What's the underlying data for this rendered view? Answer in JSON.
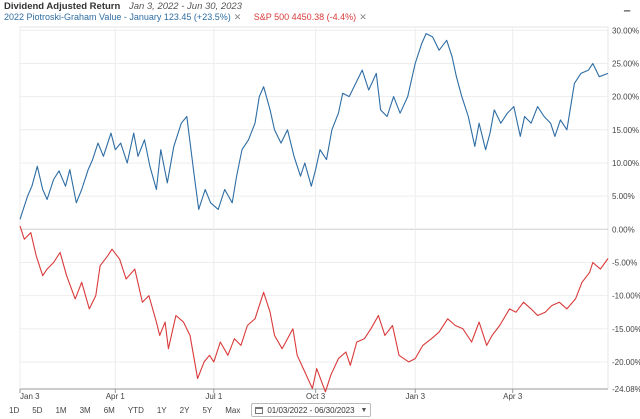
{
  "header": {
    "title": "Dividend Adjusted Return",
    "date_range": "Jan 3, 2022 - Jun 30, 2023"
  },
  "chart_data": {
    "type": "line",
    "ylim": [
      -24.08,
      30.5
    ],
    "y_ticks": [
      "30.00%",
      "25.00%",
      "20.00%",
      "15.00%",
      "10.00%",
      "5.00%",
      "0.00%",
      "-5.00%",
      "-10.00%",
      "-15.00%",
      "-20.00%",
      "-24.08%"
    ],
    "y_tick_values": [
      30,
      25,
      20,
      15,
      10,
      5,
      0,
      -5,
      -10,
      -15,
      -20,
      -24.08
    ],
    "x_ticks": [
      {
        "label": "Jan 3",
        "date": "2022-01-03"
      },
      {
        "label": "Apr 1",
        "date": "2022-04-01"
      },
      {
        "label": "Jul 1",
        "date": "2022-07-01"
      },
      {
        "label": "Oct 3",
        "date": "2022-10-03"
      },
      {
        "label": "Jan 3",
        "date": "2023-01-03"
      },
      {
        "label": "Apr 3",
        "date": "2023-04-03"
      }
    ],
    "x_range": [
      "2022-01-03",
      "2023-06-30"
    ],
    "series": [
      {
        "name": "2022 Piotroski-Graham Value - January",
        "legend": "2022 Piotroski-Graham Value - January 123.45 (+23.5%)",
        "color": "#2e6da4",
        "points": [
          [
            "2022-01-03",
            1.5
          ],
          [
            "2022-01-10",
            5.0
          ],
          [
            "2022-01-14",
            6.5
          ],
          [
            "2022-01-19",
            9.5
          ],
          [
            "2022-01-24",
            6.0
          ],
          [
            "2022-01-28",
            4.5
          ],
          [
            "2022-02-03",
            7.5
          ],
          [
            "2022-02-08",
            8.8
          ],
          [
            "2022-02-14",
            6.5
          ],
          [
            "2022-02-18",
            9.0
          ],
          [
            "2022-02-24",
            4.0
          ],
          [
            "2022-03-01",
            6.0
          ],
          [
            "2022-03-07",
            9.0
          ],
          [
            "2022-03-11",
            10.5
          ],
          [
            "2022-03-16",
            13.0
          ],
          [
            "2022-03-21",
            11.0
          ],
          [
            "2022-03-28",
            14.5
          ],
          [
            "2022-04-01",
            12.0
          ],
          [
            "2022-04-06",
            13.0
          ],
          [
            "2022-04-12",
            10.0
          ],
          [
            "2022-04-18",
            14.5
          ],
          [
            "2022-04-22",
            11.0
          ],
          [
            "2022-04-28",
            13.5
          ],
          [
            "2022-05-03",
            9.5
          ],
          [
            "2022-05-09",
            6.0
          ],
          [
            "2022-05-13",
            12.0
          ],
          [
            "2022-05-19",
            7.0
          ],
          [
            "2022-05-25",
            12.5
          ],
          [
            "2022-06-01",
            16.0
          ],
          [
            "2022-06-06",
            17.0
          ],
          [
            "2022-06-13",
            8.0
          ],
          [
            "2022-06-17",
            3.0
          ],
          [
            "2022-06-23",
            6.0
          ],
          [
            "2022-06-28",
            4.0
          ],
          [
            "2022-07-05",
            3.0
          ],
          [
            "2022-07-11",
            6.0
          ],
          [
            "2022-07-18",
            4.0
          ],
          [
            "2022-07-22",
            8.0
          ],
          [
            "2022-07-27",
            12.0
          ],
          [
            "2022-08-02",
            13.5
          ],
          [
            "2022-08-08",
            16.0
          ],
          [
            "2022-08-12",
            20.0
          ],
          [
            "2022-08-16",
            21.5
          ],
          [
            "2022-08-22",
            18.0
          ],
          [
            "2022-08-26",
            15.0
          ],
          [
            "2022-09-01",
            13.0
          ],
          [
            "2022-09-07",
            15.0
          ],
          [
            "2022-09-13",
            11.0
          ],
          [
            "2022-09-19",
            8.0
          ],
          [
            "2022-09-23",
            10.0
          ],
          [
            "2022-09-29",
            6.5
          ],
          [
            "2022-10-03",
            9.0
          ],
          [
            "2022-10-07",
            12.0
          ],
          [
            "2022-10-13",
            10.5
          ],
          [
            "2022-10-18",
            15.0
          ],
          [
            "2022-10-24",
            17.5
          ],
          [
            "2022-10-28",
            20.5
          ],
          [
            "2022-11-03",
            20.0
          ],
          [
            "2022-11-09",
            22.0
          ],
          [
            "2022-11-15",
            24.0
          ],
          [
            "2022-11-21",
            21.0
          ],
          [
            "2022-11-28",
            23.5
          ],
          [
            "2022-12-02",
            18.0
          ],
          [
            "2022-12-08",
            17.0
          ],
          [
            "2022-12-14",
            20.0
          ],
          [
            "2022-12-20",
            17.5
          ],
          [
            "2022-12-27",
            20.0
          ],
          [
            "2023-01-03",
            25.0
          ],
          [
            "2023-01-09",
            28.0
          ],
          [
            "2023-01-13",
            29.5
          ],
          [
            "2023-01-19",
            29.0
          ],
          [
            "2023-01-25",
            27.0
          ],
          [
            "2023-02-01",
            28.5
          ],
          [
            "2023-02-06",
            26.0
          ],
          [
            "2023-02-10",
            23.0
          ],
          [
            "2023-02-15",
            20.0
          ],
          [
            "2023-02-21",
            17.0
          ],
          [
            "2023-02-27",
            12.5
          ],
          [
            "2023-03-03",
            16.0
          ],
          [
            "2023-03-09",
            12.0
          ],
          [
            "2023-03-13",
            14.5
          ],
          [
            "2023-03-17",
            18.0
          ],
          [
            "2023-03-23",
            16.0
          ],
          [
            "2023-03-29",
            17.5
          ],
          [
            "2023-04-04",
            18.5
          ],
          [
            "2023-04-10",
            14.0
          ],
          [
            "2023-04-14",
            17.0
          ],
          [
            "2023-04-20",
            16.0
          ],
          [
            "2023-04-26",
            18.5
          ],
          [
            "2023-05-02",
            17.0
          ],
          [
            "2023-05-08",
            16.0
          ],
          [
            "2023-05-12",
            14.0
          ],
          [
            "2023-05-17",
            16.5
          ],
          [
            "2023-05-23",
            15.0
          ],
          [
            "2023-05-30",
            22.0
          ],
          [
            "2023-06-05",
            23.5
          ],
          [
            "2023-06-12",
            24.0
          ],
          [
            "2023-06-16",
            25.0
          ],
          [
            "2023-06-22",
            23.0
          ],
          [
            "2023-06-30",
            23.5
          ]
        ]
      },
      {
        "name": "S&P 500",
        "legend": "S&P 500 4450.38 (-4.4%)",
        "color": "#d93a3a",
        "points": [
          [
            "2022-01-03",
            0.5
          ],
          [
            "2022-01-07",
            -1.5
          ],
          [
            "2022-01-13",
            -0.5
          ],
          [
            "2022-01-18",
            -4.0
          ],
          [
            "2022-01-24",
            -7.0
          ],
          [
            "2022-01-28",
            -6.0
          ],
          [
            "2022-02-03",
            -5.0
          ],
          [
            "2022-02-09",
            -3.5
          ],
          [
            "2022-02-15",
            -7.0
          ],
          [
            "2022-02-23",
            -10.5
          ],
          [
            "2022-03-01",
            -8.0
          ],
          [
            "2022-03-08",
            -12.0
          ],
          [
            "2022-03-14",
            -10.0
          ],
          [
            "2022-03-18",
            -5.5
          ],
          [
            "2022-03-25",
            -4.0
          ],
          [
            "2022-03-29",
            -3.0
          ],
          [
            "2022-04-05",
            -4.5
          ],
          [
            "2022-04-11",
            -7.5
          ],
          [
            "2022-04-19",
            -6.0
          ],
          [
            "2022-04-26",
            -11.0
          ],
          [
            "2022-05-02",
            -10.0
          ],
          [
            "2022-05-09",
            -14.0
          ],
          [
            "2022-05-12",
            -16.0
          ],
          [
            "2022-05-17",
            -14.0
          ],
          [
            "2022-05-20",
            -18.0
          ],
          [
            "2022-05-27",
            -13.0
          ],
          [
            "2022-06-03",
            -14.0
          ],
          [
            "2022-06-09",
            -16.0
          ],
          [
            "2022-06-16",
            -22.5
          ],
          [
            "2022-06-22",
            -20.0
          ],
          [
            "2022-06-27",
            -19.0
          ],
          [
            "2022-07-01",
            -20.0
          ],
          [
            "2022-07-07",
            -17.0
          ],
          [
            "2022-07-14",
            -19.0
          ],
          [
            "2022-07-20",
            -16.5
          ],
          [
            "2022-07-26",
            -17.5
          ],
          [
            "2022-08-01",
            -14.5
          ],
          [
            "2022-08-08",
            -13.5
          ],
          [
            "2022-08-16",
            -9.5
          ],
          [
            "2022-08-22",
            -12.5
          ],
          [
            "2022-08-26",
            -16.0
          ],
          [
            "2022-09-02",
            -18.0
          ],
          [
            "2022-09-12",
            -15.0
          ],
          [
            "2022-09-16",
            -19.0
          ],
          [
            "2022-09-23",
            -21.5
          ],
          [
            "2022-09-30",
            -24.0
          ],
          [
            "2022-10-04",
            -21.0
          ],
          [
            "2022-10-12",
            -24.5
          ],
          [
            "2022-10-17",
            -22.0
          ],
          [
            "2022-10-24",
            -19.5
          ],
          [
            "2022-10-31",
            -18.5
          ],
          [
            "2022-11-04",
            -20.5
          ],
          [
            "2022-11-10",
            -17.0
          ],
          [
            "2022-11-17",
            -16.5
          ],
          [
            "2022-11-23",
            -15.0
          ],
          [
            "2022-11-30",
            -13.0
          ],
          [
            "2022-12-06",
            -16.0
          ],
          [
            "2022-12-13",
            -14.5
          ],
          [
            "2022-12-19",
            -19.0
          ],
          [
            "2022-12-28",
            -20.0
          ],
          [
            "2023-01-03",
            -19.5
          ],
          [
            "2023-01-10",
            -17.5
          ],
          [
            "2023-01-18",
            -16.5
          ],
          [
            "2023-01-25",
            -15.5
          ],
          [
            "2023-02-02",
            -13.5
          ],
          [
            "2023-02-09",
            -14.5
          ],
          [
            "2023-02-16",
            -15.0
          ],
          [
            "2023-02-24",
            -17.0
          ],
          [
            "2023-03-03",
            -14.0
          ],
          [
            "2023-03-10",
            -17.5
          ],
          [
            "2023-03-15",
            -16.0
          ],
          [
            "2023-03-22",
            -14.5
          ],
          [
            "2023-03-31",
            -12.0
          ],
          [
            "2023-04-06",
            -12.5
          ],
          [
            "2023-04-13",
            -11.0
          ],
          [
            "2023-04-20",
            -12.0
          ],
          [
            "2023-04-26",
            -13.0
          ],
          [
            "2023-05-03",
            -12.5
          ],
          [
            "2023-05-09",
            -11.5
          ],
          [
            "2023-05-16",
            -11.0
          ],
          [
            "2023-05-23",
            -12.0
          ],
          [
            "2023-05-31",
            -10.5
          ],
          [
            "2023-06-06",
            -8.0
          ],
          [
            "2023-06-13",
            -6.5
          ],
          [
            "2023-06-16",
            -5.0
          ],
          [
            "2023-06-23",
            -6.0
          ],
          [
            "2023-06-30",
            -4.4
          ]
        ]
      }
    ]
  },
  "toolbar": {
    "ranges": [
      "1D",
      "5D",
      "1M",
      "3M",
      "6M",
      "YTD",
      "1Y",
      "2Y",
      "5Y",
      "Max"
    ],
    "date_range": "01/03/2022 - 06/30/2023"
  }
}
